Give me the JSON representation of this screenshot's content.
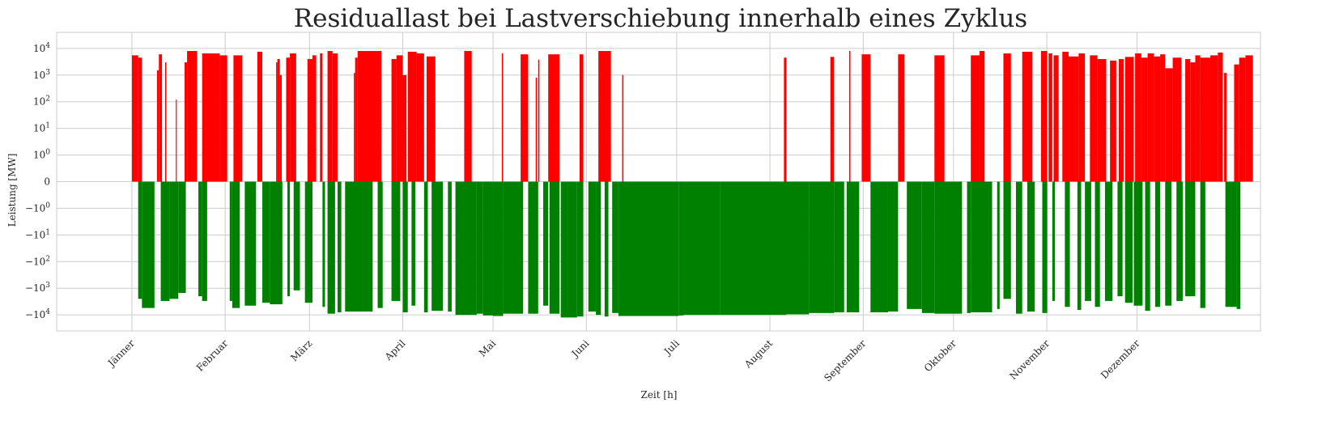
{
  "chart_data": {
    "type": "bar",
    "title": "Residuallast bei Lastverschiebung innerhalb eines Zyklus",
    "xlabel": "Zeit [h]",
    "ylabel": "Leistung [MW]",
    "yscale": "symlog",
    "ylim": [
      -40000,
      40000
    ],
    "xlim": [
      -600,
      9000
    ],
    "grid": true,
    "colors": {
      "positive": "#ff0000",
      "negative": "#008000",
      "grid": "#cccccc",
      "frame": "#cccccc",
      "text": "#262626"
    },
    "month_ticks": [
      {
        "x": 0,
        "label": "Jänner"
      },
      {
        "x": 744,
        "label": "Februar"
      },
      {
        "x": 1416,
        "label": "März"
      },
      {
        "x": 2160,
        "label": "April"
      },
      {
        "x": 2880,
        "label": "Mai"
      },
      {
        "x": 3624,
        "label": "Juni"
      },
      {
        "x": 4344,
        "label": "Juli"
      },
      {
        "x": 5088,
        "label": "August"
      },
      {
        "x": 5832,
        "label": "September"
      },
      {
        "x": 6552,
        "label": "Oktober"
      },
      {
        "x": 7296,
        "label": "November"
      },
      {
        "x": 8016,
        "label": "Dezember"
      }
    ],
    "y_ticks": [
      {
        "value": 10000,
        "label": "10^4"
      },
      {
        "value": 1000,
        "label": "10^3"
      },
      {
        "value": 100,
        "label": "10^2"
      },
      {
        "value": 10,
        "label": "10^1"
      },
      {
        "value": 1,
        "label": "10^0"
      },
      {
        "value": 0,
        "label": "0"
      },
      {
        "value": -1,
        "label": "−10^0"
      },
      {
        "value": -10,
        "label": "−10^1"
      },
      {
        "value": -100,
        "label": "−10^2"
      },
      {
        "value": -1000,
        "label": "−10^3"
      },
      {
        "value": -10000,
        "label": "−10^4"
      }
    ],
    "series": [
      {
        "sign": "positive",
        "segments": [
          [
            0,
            50,
            5500
          ],
          [
            50,
            80,
            4500
          ],
          [
            200,
            215,
            1500
          ],
          [
            215,
            240,
            6000
          ],
          [
            265,
            275,
            3000
          ],
          [
            350,
            355,
            120
          ],
          [
            420,
            440,
            3000
          ],
          [
            440,
            520,
            8000
          ],
          [
            560,
            700,
            6500
          ],
          [
            700,
            760,
            5500
          ],
          [
            810,
            880,
            5500
          ],
          [
            1000,
            1040,
            7500
          ],
          [
            1150,
            1160,
            3000
          ],
          [
            1160,
            1180,
            4000
          ],
          [
            1180,
            1195,
            1000
          ],
          [
            1230,
            1260,
            4500
          ],
          [
            1260,
            1310,
            6500
          ],
          [
            1400,
            1440,
            4000
          ],
          [
            1440,
            1470,
            5500
          ],
          [
            1500,
            1520,
            6500
          ],
          [
            1560,
            1600,
            8000
          ],
          [
            1600,
            1640,
            6500
          ],
          [
            1770,
            1780,
            1200
          ],
          [
            1780,
            1800,
            4500
          ],
          [
            1800,
            1990,
            8000
          ],
          [
            2070,
            2110,
            4000
          ],
          [
            2110,
            2160,
            5500
          ],
          [
            2160,
            2190,
            1000
          ],
          [
            2200,
            2270,
            7500
          ],
          [
            2270,
            2330,
            6500
          ],
          [
            2350,
            2420,
            5000
          ],
          [
            2650,
            2710,
            8000
          ],
          [
            2950,
            2960,
            6500
          ],
          [
            3100,
            3160,
            6000
          ],
          [
            3240,
            3250,
            3800
          ],
          [
            3220,
            3230,
            800
          ],
          [
            3320,
            3410,
            6000
          ],
          [
            3570,
            3600,
            6000
          ],
          [
            3720,
            3820,
            8000
          ],
          [
            3910,
            3920,
            1000
          ],
          [
            5200,
            5220,
            4500
          ],
          [
            5570,
            5600,
            4800
          ],
          [
            5720,
            5730,
            8000
          ],
          [
            5820,
            5890,
            6000
          ],
          [
            6110,
            6160,
            6000
          ],
          [
            6400,
            6480,
            5500
          ],
          [
            6690,
            6760,
            5500
          ],
          [
            6760,
            6800,
            8000
          ],
          [
            6950,
            7010,
            6500
          ],
          [
            7100,
            7180,
            7500
          ],
          [
            7250,
            7300,
            8000
          ],
          [
            7310,
            7340,
            6500
          ],
          [
            7350,
            7390,
            5500
          ],
          [
            7420,
            7470,
            7500
          ],
          [
            7470,
            7550,
            5000
          ],
          [
            7550,
            7600,
            6500
          ],
          [
            7640,
            7700,
            5500
          ],
          [
            7700,
            7770,
            4000
          ],
          [
            7800,
            7850,
            3500
          ],
          [
            7870,
            7910,
            4000
          ],
          [
            7920,
            7990,
            4800
          ],
          [
            8000,
            8050,
            6500
          ],
          [
            8050,
            8100,
            4500
          ],
          [
            8100,
            8150,
            6500
          ],
          [
            8150,
            8200,
            5000
          ],
          [
            8200,
            8240,
            6000
          ],
          [
            8240,
            8300,
            1800
          ],
          [
            8300,
            8370,
            4500
          ],
          [
            8400,
            8440,
            4000
          ],
          [
            8440,
            8480,
            3000
          ],
          [
            8480,
            8520,
            5500
          ],
          [
            8520,
            8600,
            4500
          ],
          [
            8600,
            8660,
            5500
          ],
          [
            8660,
            8700,
            7000
          ],
          [
            8710,
            8730,
            1200
          ],
          [
            8790,
            8830,
            2500
          ],
          [
            8830,
            8880,
            4500
          ],
          [
            8880,
            8940,
            5500
          ]
        ]
      },
      {
        "sign": "negative",
        "segments": [
          [
            50,
            80,
            -2500
          ],
          [
            80,
            180,
            -5500
          ],
          [
            230,
            300,
            -3000
          ],
          [
            300,
            370,
            -2500
          ],
          [
            370,
            430,
            -1500
          ],
          [
            530,
            560,
            -2000
          ],
          [
            560,
            600,
            -3000
          ],
          [
            780,
            800,
            -3000
          ],
          [
            800,
            860,
            -5500
          ],
          [
            900,
            990,
            -4500
          ],
          [
            1040,
            1100,
            -3500
          ],
          [
            1100,
            1200,
            -4000
          ],
          [
            1240,
            1260,
            -2000
          ],
          [
            1290,
            1340,
            -1200
          ],
          [
            1380,
            1440,
            -3500
          ],
          [
            1520,
            1540,
            -5000
          ],
          [
            1560,
            1620,
            -9000
          ],
          [
            1640,
            1670,
            -8000
          ],
          [
            1700,
            1920,
            -7500
          ],
          [
            1960,
            2000,
            -5500
          ],
          [
            2070,
            2140,
            -3000
          ],
          [
            2160,
            2200,
            -8000
          ],
          [
            2230,
            2260,
            -4500
          ],
          [
            2330,
            2360,
            -8000
          ],
          [
            2390,
            2480,
            -7000
          ],
          [
            2520,
            2550,
            -7500
          ],
          [
            2580,
            2750,
            -10000
          ],
          [
            2750,
            2800,
            -9000
          ],
          [
            2800,
            2880,
            -10500
          ],
          [
            2880,
            2960,
            -11000
          ],
          [
            2960,
            3120,
            -9000
          ],
          [
            3160,
            3240,
            -9000
          ],
          [
            3280,
            3320,
            -4500
          ],
          [
            3330,
            3410,
            -9000
          ],
          [
            3420,
            3550,
            -12500
          ],
          [
            3550,
            3600,
            -11500
          ],
          [
            3640,
            3700,
            -7500
          ],
          [
            3700,
            3740,
            -10000
          ],
          [
            3770,
            3800,
            -11500
          ],
          [
            3830,
            3880,
            -8500
          ],
          [
            3880,
            4360,
            -11000
          ],
          [
            4360,
            4400,
            -10500
          ],
          [
            4400,
            4690,
            -10000
          ],
          [
            4690,
            5220,
            -10000
          ],
          [
            5220,
            5400,
            -9500
          ],
          [
            5400,
            5600,
            -8500
          ],
          [
            5600,
            5680,
            -8000
          ],
          [
            5700,
            5800,
            -8000
          ],
          [
            5890,
            6030,
            -8000
          ],
          [
            6030,
            6110,
            -7500
          ],
          [
            6180,
            6300,
            -6000
          ],
          [
            6300,
            6400,
            -8500
          ],
          [
            6400,
            6620,
            -9000
          ],
          [
            6660,
            6690,
            -8500
          ],
          [
            6690,
            6860,
            -8000
          ],
          [
            6900,
            6920,
            -6000
          ],
          [
            6950,
            7010,
            -2500
          ],
          [
            7050,
            7100,
            -9000
          ],
          [
            7140,
            7200,
            -7500
          ],
          [
            7260,
            7300,
            -8500
          ],
          [
            7340,
            7360,
            -3000
          ],
          [
            7440,
            7480,
            -5000
          ],
          [
            7540,
            7570,
            -6500
          ],
          [
            7600,
            7650,
            -3000
          ],
          [
            7680,
            7720,
            -5000
          ],
          [
            7760,
            7820,
            -3000
          ],
          [
            7860,
            7900,
            -2000
          ],
          [
            7920,
            7980,
            -3500
          ],
          [
            7990,
            8060,
            -4500
          ],
          [
            8080,
            8120,
            -7000
          ],
          [
            8160,
            8200,
            -5000
          ],
          [
            8240,
            8290,
            -4500
          ],
          [
            8330,
            8380,
            -3000
          ],
          [
            8400,
            8480,
            -2000
          ],
          [
            8520,
            8560,
            -5500
          ],
          [
            8720,
            8810,
            -5000
          ],
          [
            8810,
            8840,
            -6000
          ]
        ]
      }
    ]
  }
}
